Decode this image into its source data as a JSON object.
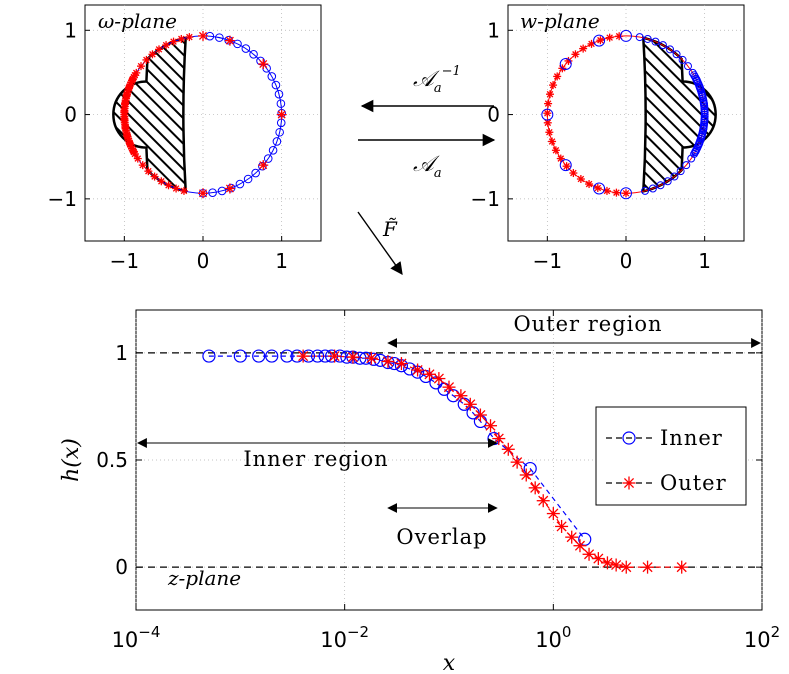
{
  "colors": {
    "inner": "#0000ff",
    "outer": "#ff0000",
    "axis": "#000000",
    "grid": "#b0b0b0"
  },
  "panels": {
    "omega": {
      "label": "ω-plane",
      "xlim": [
        -1.5,
        1.5
      ],
      "ylim": [
        -1.5,
        1.3
      ],
      "xticks": [
        {
          "value": -1,
          "label": "−1"
        },
        {
          "value": 0,
          "label": "0"
        },
        {
          "value": 1,
          "label": "1"
        }
      ],
      "yticks": [
        {
          "value": -1,
          "label": "−1"
        },
        {
          "value": 0,
          "label": "0"
        },
        {
          "value": 1,
          "label": "1"
        }
      ]
    },
    "w": {
      "label": "w-plane",
      "xlim": [
        -1.5,
        1.5
      ],
      "ylim": [
        -1.5,
        1.3
      ],
      "xticks": [
        {
          "value": -1,
          "label": "−1"
        },
        {
          "value": 0,
          "label": "0"
        },
        {
          "value": 1,
          "label": "1"
        }
      ],
      "yticks": [
        {
          "value": -1,
          "label": "−1"
        },
        {
          "value": 0,
          "label": "0"
        },
        {
          "value": 1,
          "label": "1"
        }
      ]
    }
  },
  "maps": {
    "inverse": {
      "label": "𝒜",
      "sub": "a",
      "sup": "−1"
    },
    "forward": {
      "label": "𝒜",
      "sub": "a"
    },
    "ftilde": {
      "label": "F̃"
    }
  },
  "chart_data": [
    {
      "type": "scatter",
      "title": "ω-plane",
      "xlim": [
        -1.5,
        1.5
      ],
      "ylim": [
        -1.5,
        1.3
      ],
      "series": [
        {
          "name": "Inner",
          "marker": "circle",
          "points_angles_deg": [
            90,
            80,
            70,
            60,
            50,
            40,
            30,
            20,
            10,
            0,
            -10,
            -20,
            -30,
            -40,
            -50,
            -60,
            -70,
            -80,
            -90
          ]
        },
        {
          "name": "Outer",
          "marker": "star",
          "points_angles_deg": [
            90,
            70,
            40,
            0,
            -40,
            -70,
            -90,
            100,
            110,
            120,
            130,
            140,
            150,
            160,
            170,
            180,
            -170,
            -160,
            -150,
            -140,
            -130,
            -120,
            -110,
            -100
          ]
        }
      ],
      "shaded_region": "hatched lune between circle arc and inner curve, left of x≈-0.2"
    },
    {
      "type": "scatter",
      "title": "w-plane",
      "xlim": [
        -1.5,
        1.5
      ],
      "ylim": [
        -1.5,
        1.3
      ],
      "series": [
        {
          "name": "Inner",
          "marker": "circle"
        },
        {
          "name": "Outer",
          "marker": "star"
        }
      ],
      "shaded_region": "hatched lune right of x≈0.1"
    },
    {
      "type": "line",
      "title": "z-plane",
      "xlabel": "x",
      "ylabel": "h(x)",
      "xscale": "log",
      "xlim": [
        0.0001,
        100
      ],
      "ylim": [
        -0.2,
        1.2
      ],
      "xticks": [
        {
          "value": 0.0001,
          "base": "10",
          "exp": "−4"
        },
        {
          "value": 0.01,
          "base": "10",
          "exp": "−2"
        },
        {
          "value": 1,
          "base": "10",
          "exp": "0"
        },
        {
          "value": 100,
          "base": "10",
          "exp": "2"
        }
      ],
      "yticks": [
        {
          "value": 0,
          "label": "0"
        },
        {
          "value": 0.5,
          "label": "0.5"
        },
        {
          "value": 1,
          "label": "1"
        }
      ],
      "series": [
        {
          "name": "Inner",
          "marker": "circle",
          "x": [
            0.0005,
            0.001,
            0.0015,
            0.002,
            0.0028,
            0.0035,
            0.0045,
            0.0055,
            0.0065,
            0.0075,
            0.009,
            0.0105,
            0.012,
            0.014,
            0.016,
            0.019,
            0.022,
            0.026,
            0.03,
            0.035,
            0.042,
            0.05,
            0.06,
            0.075,
            0.09,
            0.11,
            0.14,
            0.17,
            0.2,
            0.27,
            0.6,
            2.0
          ],
          "y": [
            0.985,
            0.985,
            0.985,
            0.985,
            0.985,
            0.985,
            0.985,
            0.985,
            0.985,
            0.985,
            0.985,
            0.98,
            0.98,
            0.975,
            0.975,
            0.97,
            0.965,
            0.955,
            0.95,
            0.94,
            0.925,
            0.91,
            0.89,
            0.86,
            0.83,
            0.8,
            0.76,
            0.72,
            0.68,
            0.6,
            0.46,
            0.13
          ]
        },
        {
          "name": "Outer",
          "marker": "star",
          "x": [
            0.004,
            0.008,
            0.012,
            0.018,
            0.026,
            0.035,
            0.05,
            0.065,
            0.08,
            0.1,
            0.13,
            0.16,
            0.2,
            0.25,
            0.3,
            0.37,
            0.45,
            0.55,
            0.67,
            0.8,
            1.0,
            1.2,
            1.5,
            1.8,
            2.2,
            2.7,
            3.3,
            4.0,
            5.0,
            8.0,
            17.0
          ],
          "y": [
            0.985,
            0.985,
            0.98,
            0.975,
            0.96,
            0.95,
            0.92,
            0.9,
            0.88,
            0.84,
            0.8,
            0.76,
            0.71,
            0.66,
            0.6,
            0.55,
            0.49,
            0.43,
            0.37,
            0.31,
            0.25,
            0.19,
            0.14,
            0.1,
            0.06,
            0.04,
            0.02,
            0.01,
            0.0,
            0.0,
            0.0
          ]
        }
      ],
      "reference_lines": [
        {
          "y": 1,
          "style": "dashed"
        },
        {
          "y": 0,
          "style": "dashed"
        }
      ],
      "annotations": {
        "outer_region": {
          "text": "Outer region",
          "from": 0.025,
          "to": 100
        },
        "inner_region": {
          "text": "Inner region",
          "from": 0.0001,
          "to": 0.3
        },
        "overlap": {
          "text": "Overlap",
          "from": 0.025,
          "to": 0.3
        },
        "plane_label": {
          "text": "z-plane"
        }
      },
      "legend": {
        "position": "right",
        "entries": [
          {
            "name": "Inner",
            "label": "Inner",
            "style": "-o-"
          },
          {
            "name": "Outer",
            "label": "Outer",
            "style": "-*-"
          }
        ]
      }
    }
  ]
}
